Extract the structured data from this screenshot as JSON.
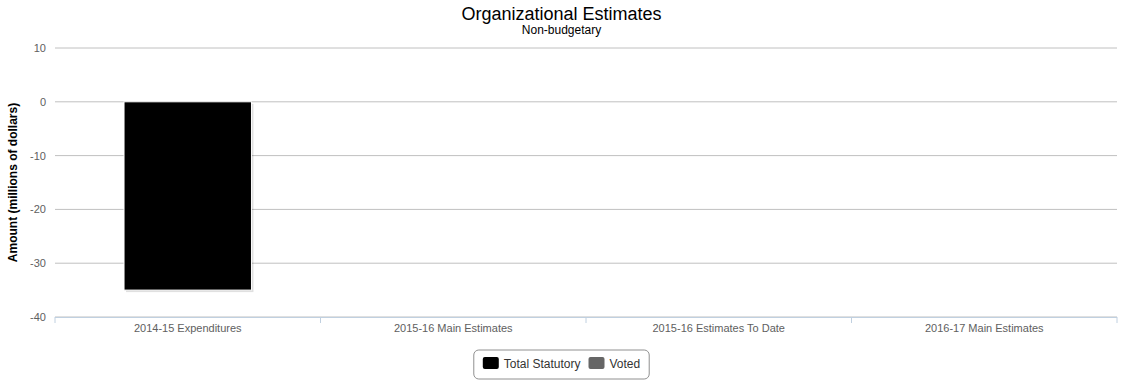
{
  "chart_data": {
    "type": "bar",
    "title": "Organizational Estimates",
    "subtitle": "Non-budgetary",
    "y_label": "Amount (millions of dollars)",
    "categories": [
      "2014-15 Expenditures",
      "2015-16 Main Estimates",
      "2015-16 Estimates To Date",
      "2016-17 Main Estimates"
    ],
    "series": [
      {
        "name": "Total Statutory",
        "color": "#000000",
        "values": [
          -35,
          null,
          null,
          null
        ]
      },
      {
        "name": "Voted",
        "color": "#666666",
        "values": [
          null,
          null,
          null,
          null
        ]
      }
    ],
    "ylim": [
      -40,
      10
    ],
    "yticks": [
      -40,
      -30,
      -20,
      -10,
      0,
      10
    ],
    "grid": true,
    "legend": "bottom"
  }
}
